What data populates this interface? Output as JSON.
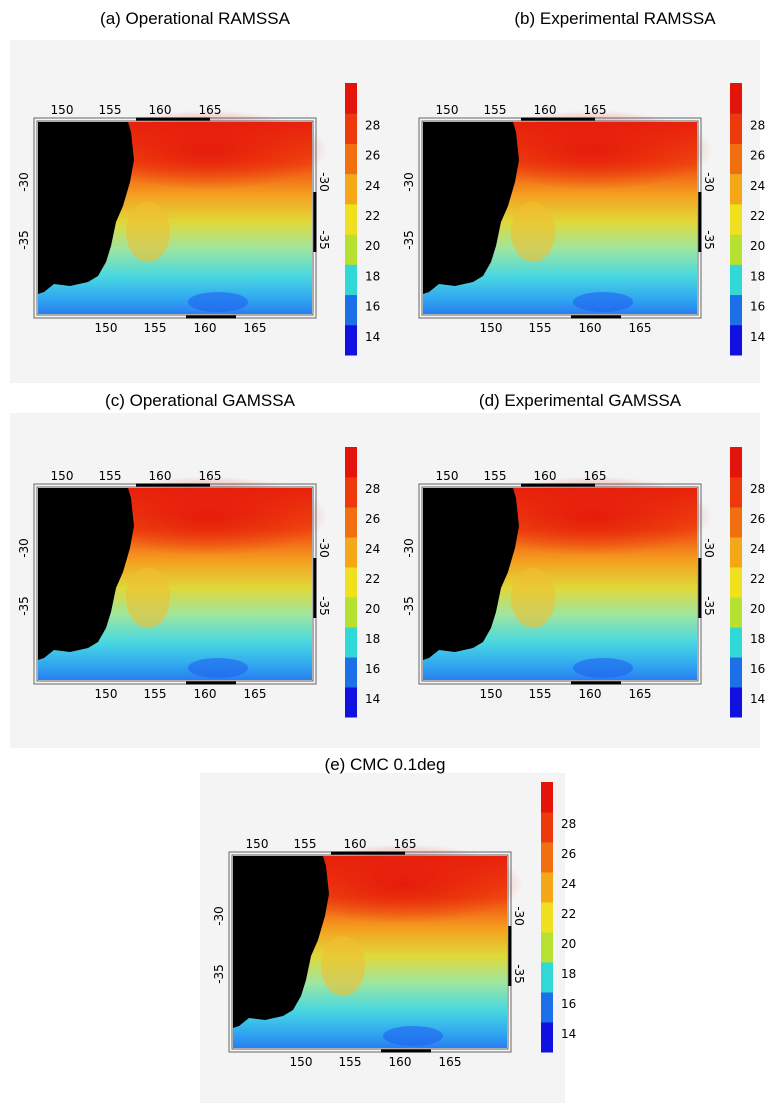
{
  "panels": [
    {
      "title": "(a)   Operational RAMSSA"
    },
    {
      "title": "(b) Experimental RAMSSA"
    },
    {
      "title": "(c)  Operational GAMSSA"
    },
    {
      "title": "(d) Experimental GAMSSA"
    },
    {
      "title": "(e) CMC 0.1deg"
    }
  ],
  "axes": {
    "lon": [
      "150",
      "155",
      "160",
      "165"
    ],
    "lat": [
      "-30",
      "-35"
    ]
  },
  "colorbar": {
    "labels": [
      "14",
      "16",
      "18",
      "20",
      "22",
      "24",
      "26",
      "28"
    ]
  }
}
